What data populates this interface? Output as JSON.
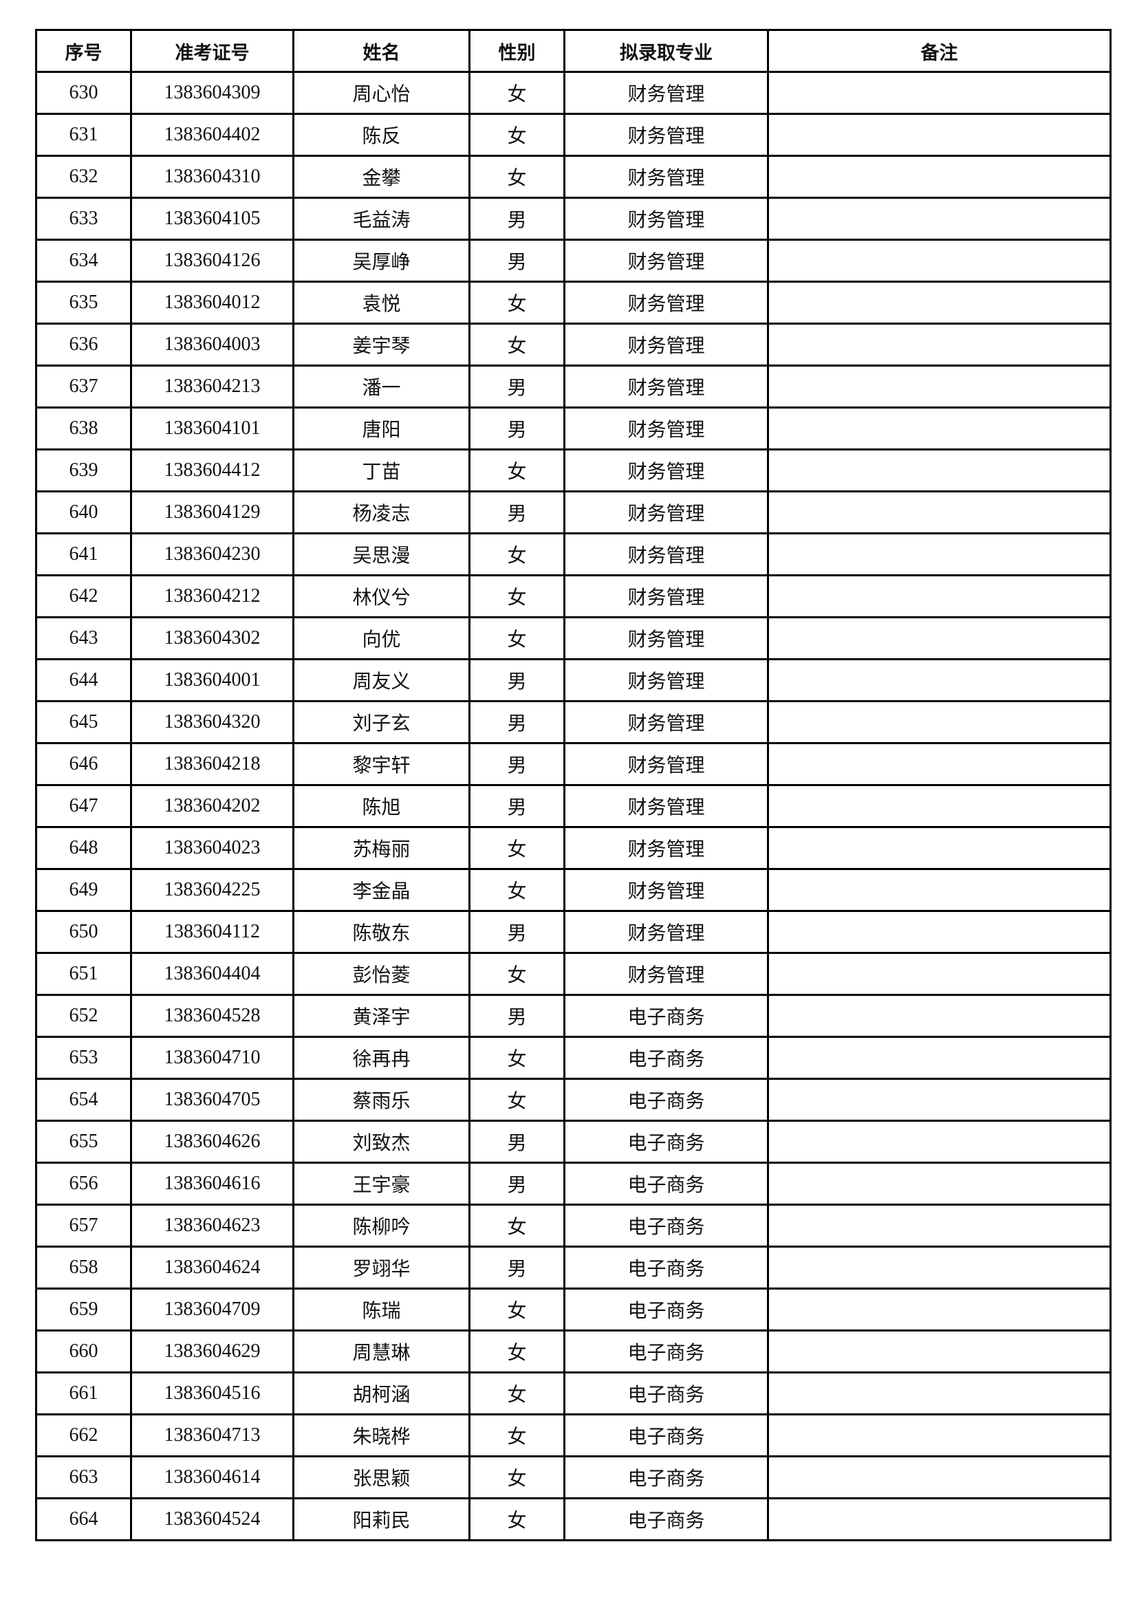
{
  "headers": [
    "序号",
    "准考证号",
    "姓名",
    "性别",
    "拟录取专业",
    "备注"
  ],
  "rows": [
    [
      "630",
      "1383604309",
      "周心怡",
      "女",
      "财务管理",
      ""
    ],
    [
      "631",
      "1383604402",
      "陈反",
      "女",
      "财务管理",
      ""
    ],
    [
      "632",
      "1383604310",
      "金攀",
      "女",
      "财务管理",
      ""
    ],
    [
      "633",
      "1383604105",
      "毛益涛",
      "男",
      "财务管理",
      ""
    ],
    [
      "634",
      "1383604126",
      "吴厚峥",
      "男",
      "财务管理",
      ""
    ],
    [
      "635",
      "1383604012",
      "袁悦",
      "女",
      "财务管理",
      ""
    ],
    [
      "636",
      "1383604003",
      "姜宇琴",
      "女",
      "财务管理",
      ""
    ],
    [
      "637",
      "1383604213",
      "潘一",
      "男",
      "财务管理",
      ""
    ],
    [
      "638",
      "1383604101",
      "唐阳",
      "男",
      "财务管理",
      ""
    ],
    [
      "639",
      "1383604412",
      "丁苗",
      "女",
      "财务管理",
      ""
    ],
    [
      "640",
      "1383604129",
      "杨凌志",
      "男",
      "财务管理",
      ""
    ],
    [
      "641",
      "1383604230",
      "吴思漫",
      "女",
      "财务管理",
      ""
    ],
    [
      "642",
      "1383604212",
      "林仪兮",
      "女",
      "财务管理",
      ""
    ],
    [
      "643",
      "1383604302",
      "向优",
      "女",
      "财务管理",
      ""
    ],
    [
      "644",
      "1383604001",
      "周友义",
      "男",
      "财务管理",
      ""
    ],
    [
      "645",
      "1383604320",
      "刘子玄",
      "男",
      "财务管理",
      ""
    ],
    [
      "646",
      "1383604218",
      "黎宇轩",
      "男",
      "财务管理",
      ""
    ],
    [
      "647",
      "1383604202",
      "陈旭",
      "男",
      "财务管理",
      ""
    ],
    [
      "648",
      "1383604023",
      "苏梅丽",
      "女",
      "财务管理",
      ""
    ],
    [
      "649",
      "1383604225",
      "李金晶",
      "女",
      "财务管理",
      ""
    ],
    [
      "650",
      "1383604112",
      "陈敬东",
      "男",
      "财务管理",
      ""
    ],
    [
      "651",
      "1383604404",
      "彭怡菱",
      "女",
      "财务管理",
      ""
    ],
    [
      "652",
      "1383604528",
      "黄泽宇",
      "男",
      "电子商务",
      ""
    ],
    [
      "653",
      "1383604710",
      "徐再冉",
      "女",
      "电子商务",
      ""
    ],
    [
      "654",
      "1383604705",
      "蔡雨乐",
      "女",
      "电子商务",
      ""
    ],
    [
      "655",
      "1383604626",
      "刘致杰",
      "男",
      "电子商务",
      ""
    ],
    [
      "656",
      "1383604616",
      "王宇豪",
      "男",
      "电子商务",
      ""
    ],
    [
      "657",
      "1383604623",
      "陈柳吟",
      "女",
      "电子商务",
      ""
    ],
    [
      "658",
      "1383604624",
      "罗翊华",
      "男",
      "电子商务",
      ""
    ],
    [
      "659",
      "1383604709",
      "陈瑞",
      "女",
      "电子商务",
      ""
    ],
    [
      "660",
      "1383604629",
      "周慧琳",
      "女",
      "电子商务",
      ""
    ],
    [
      "661",
      "1383604516",
      "胡柯涵",
      "女",
      "电子商务",
      ""
    ],
    [
      "662",
      "1383604713",
      "朱晓桦",
      "女",
      "电子商务",
      ""
    ],
    [
      "663",
      "1383604614",
      "张思颖",
      "女",
      "电子商务",
      ""
    ],
    [
      "664",
      "1383604524",
      "阳莉民",
      "女",
      "电子商务",
      ""
    ]
  ]
}
